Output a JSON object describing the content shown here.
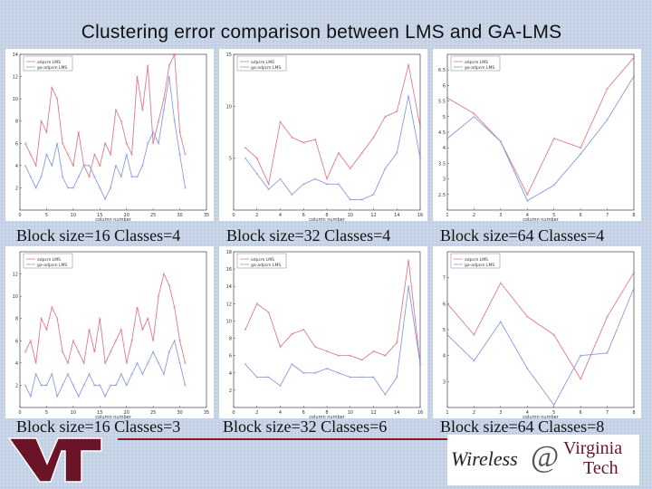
{
  "title": "Clustering error comparison between LMS and GA-LMS",
  "legend_labels": [
    "adpcm LMS",
    "ga-adpcm LMS"
  ],
  "xlabel": "column number",
  "colors": {
    "lms": "#e07a8a",
    "galms": "#8a9be0"
  },
  "footer": {
    "wireless": "Wireless",
    "at": "@",
    "virginia": "Virginia",
    "tech": "Tech"
  },
  "chart_data": [
    {
      "type": "line",
      "caption": "Block size=16 Classes=4",
      "xlim": [
        0,
        35
      ],
      "xticks": [
        0,
        5,
        10,
        15,
        20,
        25,
        30,
        35
      ],
      "ylim": [
        0,
        14
      ],
      "yticks": [
        2,
        4,
        6,
        8,
        10,
        12,
        14
      ],
      "x": [
        1,
        2,
        3,
        4,
        5,
        6,
        7,
        8,
        9,
        10,
        11,
        12,
        13,
        14,
        15,
        16,
        17,
        18,
        19,
        20,
        21,
        22,
        23,
        24,
        25,
        26,
        27,
        28,
        29,
        30,
        31
      ],
      "series": [
        {
          "name": "adpcm LMS",
          "values": [
            6,
            5,
            4,
            8,
            7,
            11,
            10,
            6,
            5,
            4,
            7,
            4,
            3,
            5,
            4,
            6,
            5,
            9,
            8,
            6,
            5,
            12,
            9,
            13,
            6,
            8,
            10,
            13,
            14,
            7,
            5
          ]
        },
        {
          "name": "ga-adpcm LMS",
          "values": [
            4,
            3,
            2,
            3,
            5,
            4,
            6,
            3,
            2,
            2,
            3,
            4,
            4,
            3,
            2,
            1,
            2,
            4,
            3,
            5,
            3,
            3,
            4,
            6,
            7,
            6,
            9,
            12,
            8,
            5,
            2
          ]
        }
      ]
    },
    {
      "type": "line",
      "caption": "Block size=32 Classes=4",
      "xlim": [
        0,
        16
      ],
      "xticks": [
        0,
        2,
        4,
        6,
        8,
        10,
        12,
        14,
        16
      ],
      "ylim": [
        0,
        15
      ],
      "yticks": [
        5,
        10,
        15
      ],
      "x": [
        1,
        2,
        3,
        4,
        5,
        6,
        7,
        8,
        9,
        10,
        11,
        12,
        13,
        14,
        15,
        16
      ],
      "series": [
        {
          "name": "adpcm LMS",
          "values": [
            6,
            5,
            2.5,
            8.5,
            7,
            6.5,
            6.8,
            3,
            5.5,
            4,
            5.5,
            7,
            9,
            9.5,
            14,
            8
          ]
        },
        {
          "name": "ga-adpcm LMS",
          "values": [
            5,
            3.5,
            2,
            3,
            1.5,
            2.5,
            3,
            2.5,
            2.5,
            1,
            1,
            1.5,
            4,
            5.5,
            11,
            5
          ]
        }
      ]
    },
    {
      "type": "line",
      "caption": "Block size=64  Classes=4",
      "xlim": [
        1,
        8
      ],
      "xticks": [
        1,
        2,
        3,
        4,
        5,
        6,
        7,
        8
      ],
      "ylim": [
        2,
        7
      ],
      "yticks": [
        2.5,
        3,
        3.5,
        4,
        4.5,
        5,
        5.5,
        6,
        6.5
      ],
      "x": [
        1,
        2,
        3,
        4,
        5,
        6,
        7,
        8
      ],
      "series": [
        {
          "name": "adpcm LMS",
          "values": [
            5.6,
            5.1,
            4.2,
            2.5,
            4.3,
            4.0,
            5.9,
            6.9
          ]
        },
        {
          "name": "ga-adpcm LMS",
          "values": [
            4.3,
            5.0,
            4.2,
            2.3,
            2.8,
            3.8,
            4.9,
            6.3
          ]
        }
      ]
    },
    {
      "type": "line",
      "caption": "Block size=16 Classes=3",
      "xlim": [
        0,
        35
      ],
      "xticks": [
        0,
        5,
        10,
        15,
        20,
        25,
        30,
        35
      ],
      "ylim": [
        0,
        14
      ],
      "yticks": [
        2,
        4,
        6,
        8,
        10,
        12
      ],
      "x": [
        1,
        2,
        3,
        4,
        5,
        6,
        7,
        8,
        9,
        10,
        11,
        12,
        13,
        14,
        15,
        16,
        17,
        18,
        19,
        20,
        21,
        22,
        23,
        24,
        25,
        26,
        27,
        28,
        29,
        30,
        31
      ],
      "series": [
        {
          "name": "adpcm LMS",
          "values": [
            5,
            6,
            4,
            8,
            7,
            9,
            8,
            5,
            4,
            6,
            5,
            4,
            7,
            5,
            8,
            4,
            5,
            6,
            7,
            4,
            6,
            9,
            7,
            8,
            6,
            10,
            12,
            11,
            9,
            6,
            4
          ]
        },
        {
          "name": "ga-adpcm LMS",
          "values": [
            2,
            1,
            3,
            2,
            2,
            3,
            1,
            2,
            3,
            2,
            1,
            2,
            3,
            2,
            2,
            1,
            2,
            2,
            3,
            2,
            3,
            4,
            3,
            4,
            5,
            4,
            3,
            5,
            6,
            4,
            2
          ]
        }
      ]
    },
    {
      "type": "line",
      "caption": "Block size=32 Classes=6",
      "xlim": [
        0,
        16
      ],
      "xticks": [
        0,
        2,
        4,
        6,
        8,
        10,
        12,
        14,
        16
      ],
      "ylim": [
        0,
        18
      ],
      "yticks": [
        2,
        4,
        6,
        8,
        10,
        12,
        14,
        16,
        18
      ],
      "x": [
        1,
        2,
        3,
        4,
        5,
        6,
        7,
        8,
        9,
        10,
        11,
        12,
        13,
        14,
        15,
        16
      ],
      "series": [
        {
          "name": "adpcm LMS",
          "values": [
            9,
            12,
            11,
            7,
            8.5,
            9,
            7,
            6.5,
            6,
            6,
            5.5,
            6.5,
            6,
            7.5,
            17,
            5
          ]
        },
        {
          "name": "ga-adpcm LMS",
          "values": [
            5,
            3.5,
            3.5,
            2.5,
            5,
            4,
            4,
            4.5,
            4,
            3.5,
            3.5,
            3.5,
            1.5,
            3.5,
            14,
            5
          ]
        }
      ]
    },
    {
      "type": "line",
      "caption": "Block size=64  Classes=8",
      "xlim": [
        1,
        8
      ],
      "xticks": [
        1,
        2,
        3,
        4,
        5,
        6,
        7,
        8
      ],
      "ylim": [
        2,
        8
      ],
      "yticks": [
        3,
        4,
        5,
        6,
        7
      ],
      "x": [
        1,
        2,
        3,
        4,
        5,
        6,
        7,
        8
      ],
      "series": [
        {
          "name": "adpcm LMS",
          "values": [
            6.0,
            4.8,
            6.8,
            5.5,
            4.8,
            3.1,
            5.5,
            7.2
          ]
        },
        {
          "name": "ga-adpcm LMS",
          "values": [
            4.8,
            3.8,
            5.3,
            3.5,
            2.1,
            4.0,
            4.1,
            6.6
          ]
        }
      ]
    }
  ]
}
